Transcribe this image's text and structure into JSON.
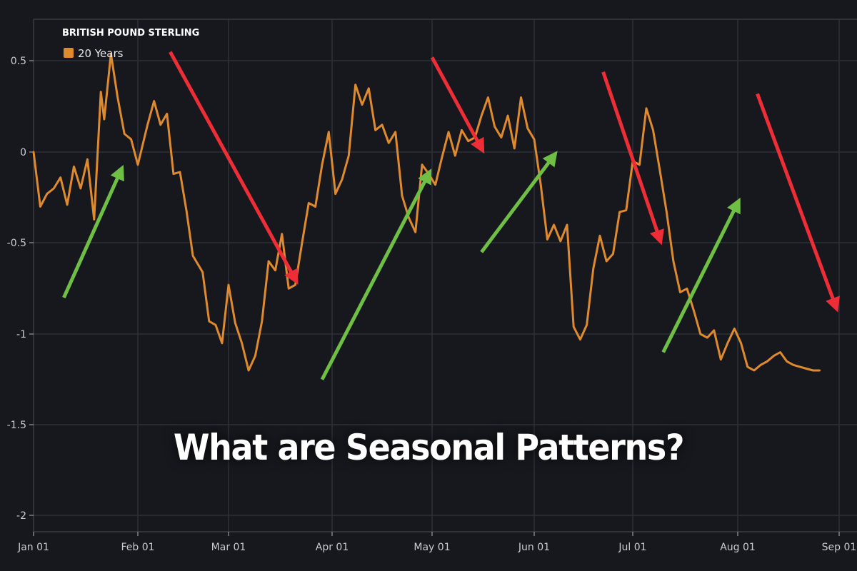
{
  "chart_data": {
    "type": "line",
    "title": "BRITISH POUND STERLING",
    "xlabel": "",
    "ylabel": "",
    "ylim": [
      -2.1,
      0.72
    ],
    "grid": true,
    "legend_position": "top-left",
    "x_ticks": [
      "Jan 01",
      "Feb 01",
      "Mar 01",
      "Apr 01",
      "May 01",
      "Jun 01",
      "Jul 01",
      "Aug 01",
      "Sep 01"
    ],
    "y_ticks": [
      "0.5",
      "0",
      "-0.5",
      "-1",
      "-1.5",
      "-2"
    ],
    "series": [
      {
        "name": "20 Years",
        "color": "#e08a2e",
        "x_day_of_year": [
          1,
          3,
          5,
          7,
          9,
          11,
          13,
          15,
          17,
          19,
          21,
          22,
          24,
          26,
          28,
          30,
          32,
          35,
          37,
          39,
          41,
          43,
          45,
          47,
          49,
          52,
          54,
          56,
          58,
          60,
          62,
          64,
          66,
          68,
          70,
          72,
          74,
          76,
          78,
          80,
          82,
          84,
          86,
          88,
          90,
          92,
          94,
          96,
          98,
          100,
          102,
          104,
          106,
          108,
          110,
          112,
          114,
          116,
          118,
          120,
          122,
          124,
          126,
          128,
          130,
          132,
          134,
          136,
          138,
          140,
          142,
          144,
          146,
          148,
          150,
          152,
          154,
          156,
          158,
          160,
          162,
          164,
          166,
          168,
          170,
          172,
          174,
          176,
          178,
          180,
          182,
          184,
          186,
          188,
          190,
          192,
          194,
          196,
          198,
          200,
          202,
          204,
          206,
          208,
          210,
          212,
          214,
          216,
          218,
          220,
          222,
          224,
          226,
          228,
          230,
          232,
          234,
          236,
          238,
          240,
          242,
          244,
          246
        ],
        "values": [
          0.0,
          -0.3,
          -0.23,
          -0.2,
          -0.14,
          -0.29,
          -0.08,
          -0.2,
          -0.04,
          -0.37,
          0.33,
          0.18,
          0.54,
          0.3,
          0.1,
          0.07,
          -0.07,
          0.15,
          0.28,
          0.15,
          0.21,
          -0.12,
          -0.11,
          -0.32,
          -0.57,
          -0.66,
          -0.93,
          -0.95,
          -1.05,
          -0.73,
          -0.94,
          -1.05,
          -1.2,
          -1.12,
          -0.93,
          -0.6,
          -0.65,
          -0.45,
          -0.75,
          -0.73,
          -0.5,
          -0.28,
          -0.3,
          -0.07,
          0.11,
          -0.23,
          -0.15,
          -0.02,
          0.37,
          0.26,
          0.35,
          0.12,
          0.15,
          0.05,
          0.11,
          -0.24,
          -0.36,
          -0.44,
          -0.07,
          -0.12,
          -0.18,
          -0.03,
          0.11,
          -0.02,
          0.12,
          0.06,
          0.08,
          0.2,
          0.3,
          0.14,
          0.08,
          0.2,
          0.02,
          0.3,
          0.13,
          0.07,
          -0.18,
          -0.48,
          -0.4,
          -0.49,
          -0.4,
          -0.96,
          -1.03,
          -0.95,
          -0.64,
          -0.46,
          -0.6,
          -0.56,
          -0.33,
          -0.32,
          -0.05,
          -0.07,
          0.24,
          0.12,
          -0.1,
          -0.33,
          -0.6,
          -0.77,
          -0.75,
          -0.87,
          -1.0,
          -1.02,
          -0.98,
          -1.14,
          -1.05,
          -0.97,
          -1.05,
          -1.18,
          -1.2,
          -1.17,
          -1.15,
          -1.12,
          -1.1,
          -1.15,
          -1.17,
          -1.18,
          -1.19,
          -1.2,
          -1.2
        ]
      }
    ],
    "annotations": [
      {
        "type": "arrow",
        "color": "#6fbf44",
        "direction": "up",
        "from_x": "Jan 10",
        "to_x": "Jan 27",
        "from_y": -0.8,
        "to_y": -0.1
      },
      {
        "type": "arrow",
        "color": "#ee2d36",
        "direction": "down",
        "from_x": "Feb 11",
        "to_x": "Mar 21",
        "from_y": 0.55,
        "to_y": -0.7
      },
      {
        "type": "arrow",
        "color": "#6fbf44",
        "direction": "up",
        "from_x": "Mar 29",
        "to_x": "Apr 30",
        "from_y": -1.25,
        "to_y": -0.12
      },
      {
        "type": "arrow",
        "color": "#ee2d36",
        "direction": "down",
        "from_x": "May 01",
        "to_x": "May 16",
        "from_y": 0.52,
        "to_y": 0.02
      },
      {
        "type": "arrow",
        "color": "#6fbf44",
        "direction": "up",
        "from_x": "May 16",
        "to_x": "Jun 07",
        "from_y": -0.55,
        "to_y": -0.02
      },
      {
        "type": "arrow",
        "color": "#ee2d36",
        "direction": "down",
        "from_x": "Jun 22",
        "to_x": "Jul 09",
        "from_y": 0.44,
        "to_y": -0.48
      },
      {
        "type": "arrow",
        "color": "#6fbf44",
        "direction": "up",
        "from_x": "Jul 10",
        "to_x": "Aug 01",
        "from_y": -1.1,
        "to_y": -0.28
      },
      {
        "type": "arrow",
        "color": "#ee2d36",
        "direction": "down",
        "from_x": "Aug 07",
        "to_x": "Aug 31",
        "from_y": 0.32,
        "to_y": -0.85
      }
    ]
  },
  "legend": {
    "title": "BRITISH POUND STERLING",
    "item_label": "20 Years",
    "item_color": "#e08a2e"
  },
  "axes": {
    "y_labels": [
      "0.5",
      "0",
      "-0.5",
      "-1",
      "-1.5",
      "-2"
    ],
    "x_labels": [
      "Jan 01",
      "Feb 01",
      "Mar 01",
      "Apr 01",
      "May 01",
      "Jun 01",
      "Jul 01",
      "Aug 01",
      "Sep 01"
    ]
  },
  "caption": "What are Seasonal Patterns?",
  "colors": {
    "background": "#17181e",
    "grid": "#2e3038",
    "line": "#e08a2e",
    "up_arrow": "#6fbf44",
    "down_arrow": "#ee2d36"
  }
}
